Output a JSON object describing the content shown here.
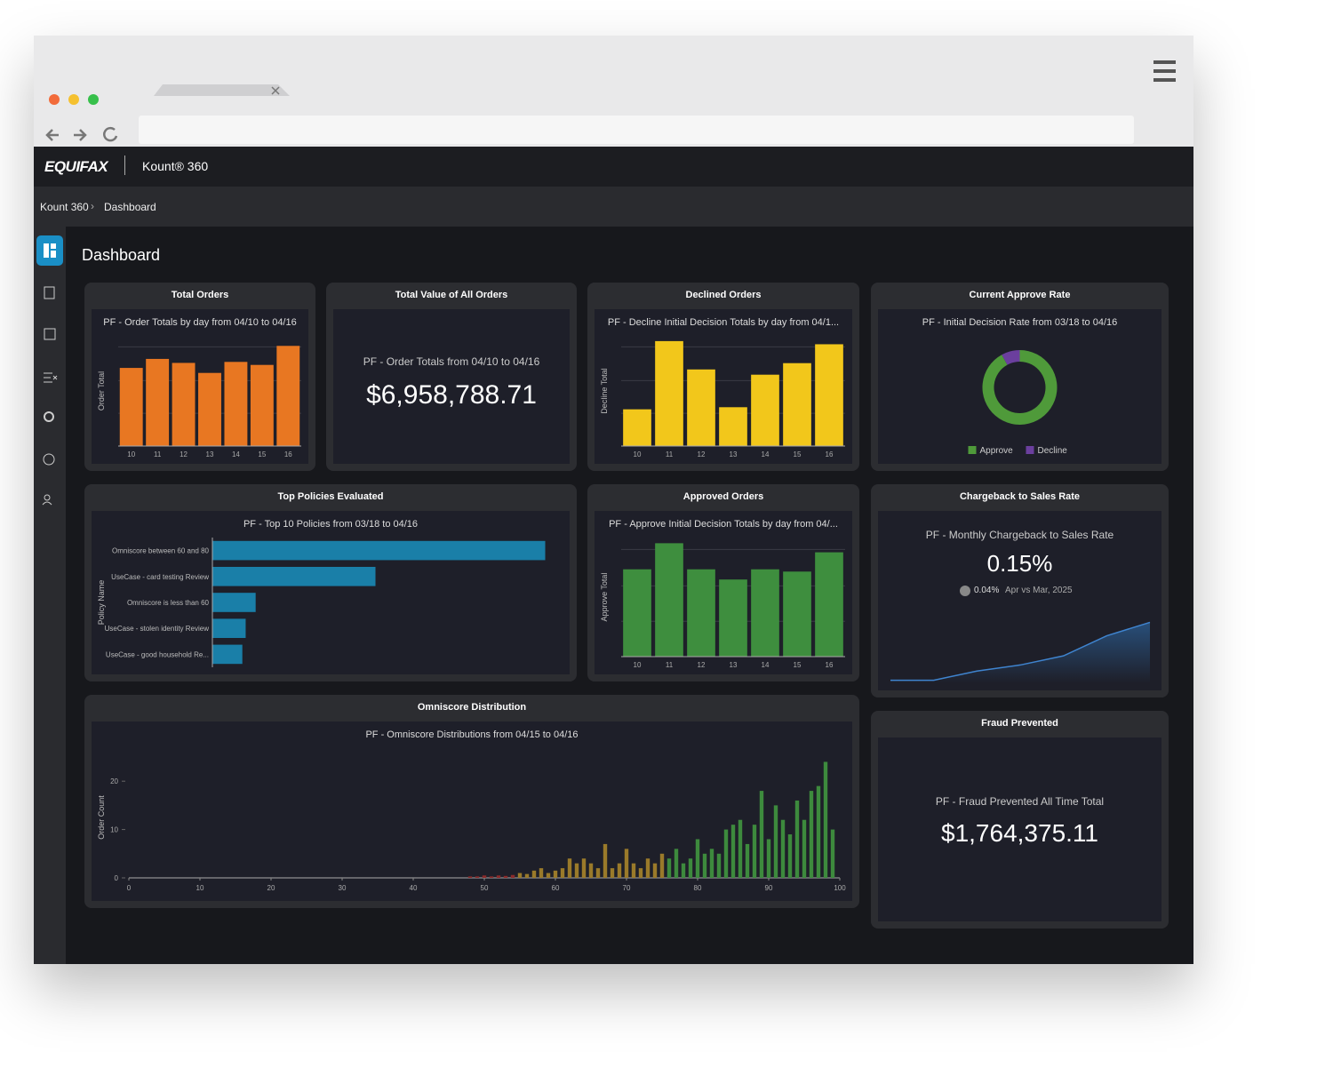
{
  "header": {
    "brand": "EQUIFAX",
    "product": "Kount® 360"
  },
  "breadcrumb": [
    "Kount 360",
    "Dashboard"
  ],
  "page_title": "Dashboard",
  "kpis": [
    {
      "panel": "Total Value of All Orders",
      "subtitle": "PF - Order Totals from 04/10 to 04/16",
      "value": "$6,958,788.71"
    },
    {
      "panel": "Chargeback to Sales Rate",
      "subtitle": "PF - Monthly Chargeback to Sales Rate",
      "value": "0.15%",
      "change": "0.04%",
      "comparison": "Apr vs Mar, 2025"
    },
    {
      "panel": "Fraud Prevented",
      "subtitle": "PF - Fraud Prevented All Time Total",
      "value": "$1,764,375.11"
    }
  ],
  "chart_data": [
    {
      "type": "bar",
      "panel": "Total Orders",
      "title": "PF - Order Totals by day from 04/10 to 04/16",
      "y_label": "Order Total",
      "categories": [
        "10",
        "11",
        "12",
        "13",
        "14",
        "15",
        "16"
      ],
      "values": [
        0.78,
        0.87,
        0.83,
        0.73,
        0.84,
        0.81,
        1.0
      ],
      "color": "#e87722",
      "ylim": [
        0,
        1.1
      ]
    },
    {
      "type": "bar",
      "panel": "Declined Orders",
      "title": "PF - Decline Initial Decision Totals by day from 04/1...",
      "y_label": "Decline Total",
      "categories": [
        "10",
        "11",
        "12",
        "13",
        "14",
        "15",
        "16"
      ],
      "values": [
        0.35,
        1.0,
        0.73,
        0.37,
        0.68,
        0.79,
        0.97
      ],
      "color": "#f2c71b",
      "ylim": [
        0,
        1.05
      ]
    },
    {
      "type": "pie",
      "panel": "Current Approve Rate",
      "title": "PF - Initial Decision Rate from 03/18 to 04/16",
      "categories": [
        "Approve",
        "Decline"
      ],
      "values": [
        92,
        8
      ],
      "colors": [
        "#4f9a3a",
        "#6b3f9e"
      ],
      "donut": true
    },
    {
      "type": "hbar",
      "panel": "Top Policies Evaluated",
      "title": "PF - Top 10 Policies from 03/18 to 04/16",
      "y_label": "Policy Name",
      "categories": [
        "Omniscore between 60 and 80",
        "UseCase - card testing Review",
        "Omniscore is less than 60",
        "UseCase - stolen identity Review",
        "UseCase - good household Re..."
      ],
      "values": [
        1.0,
        0.49,
        0.13,
        0.1,
        0.09
      ],
      "color": "#1a7fa8",
      "xlim": [
        0,
        1.02
      ]
    },
    {
      "type": "bar",
      "panel": "Approved Orders",
      "title": "PF - Approve Initial Decision Totals by day from 04/...",
      "y_label": "Approve Total",
      "categories": [
        "10",
        "11",
        "12",
        "13",
        "14",
        "15",
        "16"
      ],
      "values": [
        0.77,
        1.0,
        0.77,
        0.68,
        0.77,
        0.75,
        0.92
      ],
      "color": "#3e8e3e",
      "ylim": [
        0,
        1.05
      ]
    },
    {
      "type": "area",
      "values": [
        0.05,
        0.05,
        0.2,
        0.3,
        0.45,
        0.78,
        1.0
      ],
      "color": "#2f6fb0",
      "ylim": [
        0,
        1.05
      ]
    },
    {
      "type": "bar",
      "panel": "Omniscore Distribution",
      "title": "PF - Omniscore Distributions from 04/15 to 04/16",
      "y_label": "Order Count",
      "x": [
        48,
        49,
        50,
        51,
        52,
        53,
        54,
        55,
        56,
        57,
        58,
        59,
        60,
        61,
        62,
        63,
        64,
        65,
        66,
        67,
        68,
        69,
        70,
        71,
        72,
        73,
        74,
        75,
        76,
        77,
        78,
        79,
        80,
        81,
        82,
        83,
        84,
        85,
        86,
        87,
        88,
        89,
        90,
        91,
        92,
        93,
        94,
        95,
        96,
        97,
        98,
        99
      ],
      "values": [
        0.3,
        0.3,
        0.5,
        0.3,
        0.5,
        0.4,
        0.6,
        1,
        0.8,
        1.5,
        2,
        1,
        1.5,
        2,
        4,
        3,
        4,
        3,
        2,
        7,
        2,
        3,
        6,
        3,
        2,
        4,
        3,
        5,
        4,
        6,
        3,
        4,
        8,
        5,
        6,
        5,
        10,
        11,
        12,
        7,
        11,
        18,
        8,
        15,
        12,
        9,
        16,
        12,
        18,
        19,
        24,
        10
      ],
      "colors": [
        "#8b2a2a",
        "#8b2a2a",
        "#8b2a2a",
        "#8b2a2a",
        "#8b2a2a",
        "#8b2a2a",
        "#8b2a2a",
        "#9a7a2a",
        "#9a7a2a",
        "#9a7a2a",
        "#9a7a2a",
        "#9a7a2a",
        "#9a7a2a",
        "#9a7a2a",
        "#9a7a2a",
        "#9a7a2a",
        "#9a7a2a",
        "#9a7a2a",
        "#9a7a2a",
        "#9a7a2a",
        "#9a7a2a",
        "#9a7a2a",
        "#9a7a2a",
        "#9a7a2a",
        "#9a7a2a",
        "#9a7a2a",
        "#9a7a2a",
        "#9a7a2a",
        "#3d8a3d",
        "#3d8a3d",
        "#3d8a3d",
        "#3d8a3d",
        "#3d8a3d",
        "#3d8a3d",
        "#3d8a3d",
        "#3d8a3d",
        "#3d8a3d",
        "#3d8a3d",
        "#3d8a3d",
        "#3d8a3d",
        "#3d8a3d",
        "#3d8a3d",
        "#3d8a3d",
        "#3d8a3d",
        "#3d8a3d",
        "#3d8a3d",
        "#3d8a3d",
        "#3d8a3d",
        "#3d8a3d",
        "#3d8a3d",
        "#3d8a3d",
        "#3d8a3d"
      ],
      "xlim": [
        0,
        100
      ],
      "xticks": [
        0,
        10,
        20,
        30,
        40,
        50,
        60,
        70,
        80,
        90,
        100
      ],
      "ylim": [
        0,
        25
      ],
      "yticks": [
        0,
        10,
        20
      ]
    }
  ]
}
